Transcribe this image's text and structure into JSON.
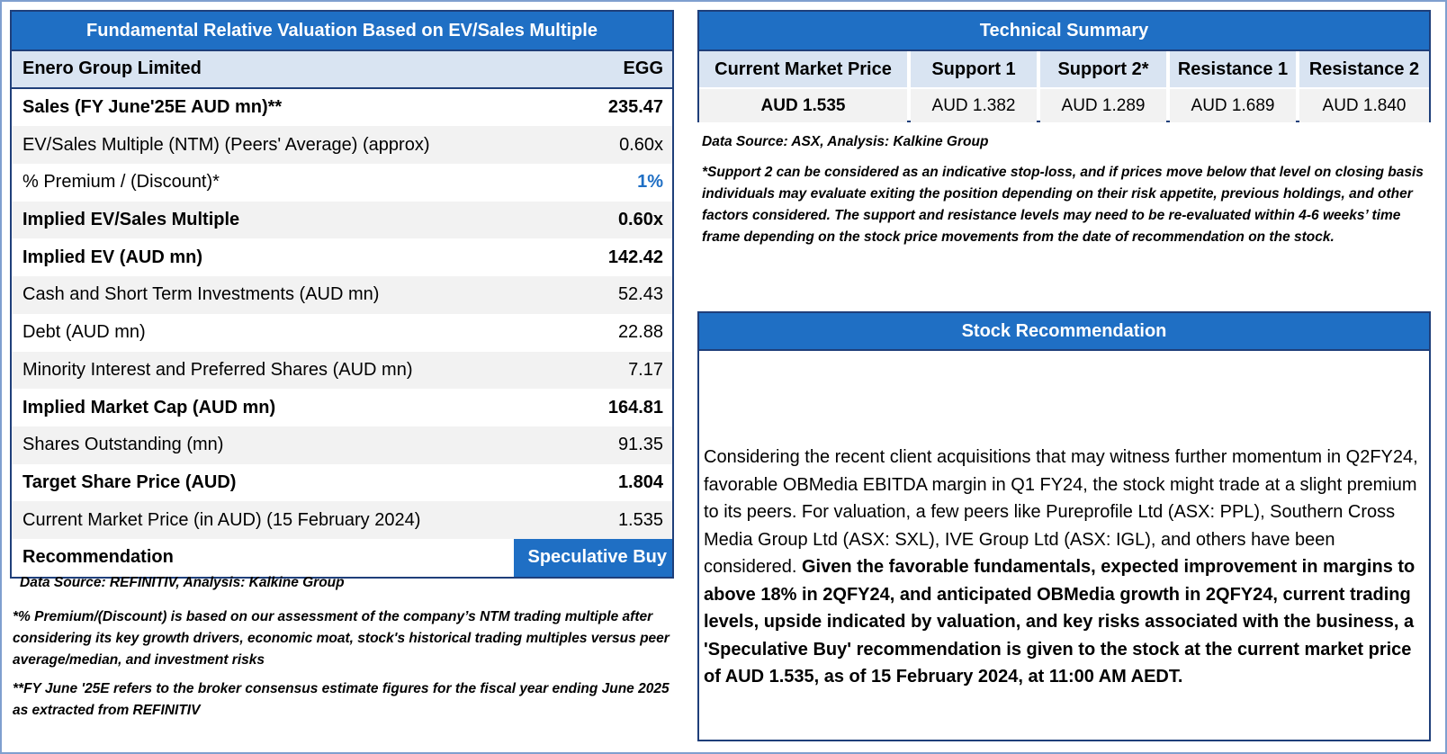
{
  "valuation": {
    "title": "Fundamental Relative Valuation Based on EV/Sales Multiple",
    "company_name": "Enero Group Limited",
    "ticker": "EGG",
    "rows": [
      {
        "label": "Sales (FY June'25E AUD mn)**",
        "value": "235.47"
      },
      {
        "label": "EV/Sales Multiple (NTM)  (Peers' Average) (approx)",
        "value": "0.60x"
      },
      {
        "label": "% Premium / (Discount)*",
        "value": "1%"
      },
      {
        "label": "Implied EV/Sales Multiple",
        "value": "0.60x"
      },
      {
        "label": "Implied EV (AUD mn)",
        "value": "142.42"
      },
      {
        "label": "Cash and Short Term Investments (AUD mn)",
        "value": "52.43"
      },
      {
        "label": "Debt (AUD mn)",
        "value": "22.88"
      },
      {
        "label": "Minority Interest and Preferred Shares (AUD mn)",
        "value": "7.17"
      },
      {
        "label": "Implied Market Cap (AUD mn)",
        "value": "164.81"
      },
      {
        "label": "Shares Outstanding (mn)",
        "value": "91.35"
      },
      {
        "label": "Target Share Price (AUD)",
        "value": "1.804"
      },
      {
        "label": "Current Market Price (in AUD) (15 February 2024)",
        "value": "1.535"
      }
    ],
    "recommendation_label": "Recommendation",
    "recommendation_value": "Speculative Buy",
    "source": "Data Source: REFINITIV, Analysis: Kalkine Group",
    "note1": "*% Premium/(Discount) is based on our assessment of the company’s NTM trading multiple after considering its key growth drivers, economic moat, stock's historical trading multiples versus peer average/median, and investment risks",
    "note2": "**FY June '25E refers to the broker consensus estimate figures for the fiscal year ending June 2025 as extracted from REFINITIV"
  },
  "technical": {
    "title": "Technical Summary",
    "columns": [
      {
        "header": "Current Market Price",
        "value": "AUD 1.535"
      },
      {
        "header": "Support 1",
        "value": "AUD 1.382"
      },
      {
        "header": "Support 2*",
        "value": "AUD 1.289"
      },
      {
        "header": "Resistance 1",
        "value": "AUD 1.689"
      },
      {
        "header": "Resistance 2",
        "value": "AUD 1.840"
      }
    ],
    "source": "Data Source: ASX, Analysis: Kalkine Group",
    "note": "*Support 2 can be considered as an indicative stop-loss, and if prices move below that level on closing basis individuals may evaluate exiting the position depending on their risk appetite, previous holdings, and other factors considered. The support and resistance levels may need to be re-evaluated within 4-6 weeks’ time frame depending on the stock price movements from the date of recommendation on the stock."
  },
  "stock_recommendation": {
    "title": "Stock Recommendation",
    "text_normal": "Considering the recent client acquisitions that may witness further momentum in Q2FY24, favorable OBMedia EBITDA margin in Q1 FY24, the stock might trade at a slight premium to its peers. For valuation, a few peers like Pureprofile Ltd (ASX: PPL), Southern Cross Media Group Ltd (ASX: SXL), IVE Group Ltd (ASX: IGL), and others have been considered. ",
    "text_bold": "Given the favorable fundamentals, expected improvement in margins to above 18% in 2QFY24, and anticipated OBMedia growth in 2QFY24, current trading levels, upside indicated by valuation, and key risks associated with the business, a 'Speculative Buy' recommendation is given to the stock at the current market price of AUD 1.535, as of 15 February 2024, at 11:00 AM AEDT."
  },
  "colors": {
    "header_blue": "#1f6fc4",
    "border_navy": "#1f3f7a",
    "light_blue": "#d9e4f2",
    "row_gray": "#f2f2f2"
  }
}
